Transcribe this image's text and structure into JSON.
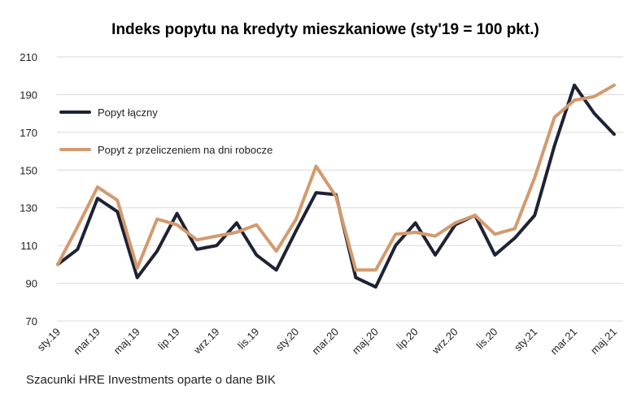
{
  "chart_data": {
    "type": "line",
    "title": "Indeks popytu na kredyty mieszkaniowe (sty'19 = 100 pkt.)",
    "xlabel": "",
    "ylabel": "",
    "ylim": [
      70,
      210
    ],
    "yticks": [
      70,
      90,
      110,
      130,
      150,
      170,
      190,
      210
    ],
    "grid": true,
    "legend_position": "top-left",
    "x": [
      "sty.19",
      "lut.19",
      "mar.19",
      "kwi.19",
      "maj.19",
      "cze.19",
      "lip.19",
      "sie.19",
      "wrz.19",
      "paź.19",
      "lis.19",
      "gru.19",
      "sty.20",
      "lut.20",
      "mar.20",
      "kwi.20",
      "maj.20",
      "cze.20",
      "lip.20",
      "sie.20",
      "wrz.20",
      "paź.20",
      "lis.20",
      "gru.20",
      "sty.21",
      "lut.21",
      "mar.21",
      "kwi.21",
      "maj.21"
    ],
    "x_tick_labels": [
      "sty.19",
      "mar.19",
      "maj.19",
      "lip.19",
      "wrz.19",
      "lis.19",
      "sty.20",
      "mar.20",
      "maj.20",
      "lip.20",
      "wrz.20",
      "lis.20",
      "sty.21",
      "mar.21",
      "maj.21"
    ],
    "series": [
      {
        "name": "Popyt łączny",
        "color": "#1e2233",
        "values": [
          100,
          108,
          135,
          128,
          93,
          107,
          127,
          108,
          110,
          122,
          105,
          97,
          118,
          138,
          137,
          93,
          88,
          110,
          122,
          105,
          121,
          126,
          105,
          114,
          126,
          163,
          195,
          180,
          169
        ]
      },
      {
        "name": "Popyt z przeliczeniem na dni robocze",
        "color": "#d39a6e",
        "values": [
          100,
          120,
          141,
          134,
          98,
          124,
          121,
          113,
          115,
          117,
          121,
          107,
          124,
          152,
          136,
          97,
          97,
          116,
          117,
          115,
          122,
          126,
          116,
          119,
          146,
          178,
          187,
          189,
          195
        ]
      }
    ]
  },
  "footnote": "Szacunki HRE Investments oparte o dane BIK"
}
